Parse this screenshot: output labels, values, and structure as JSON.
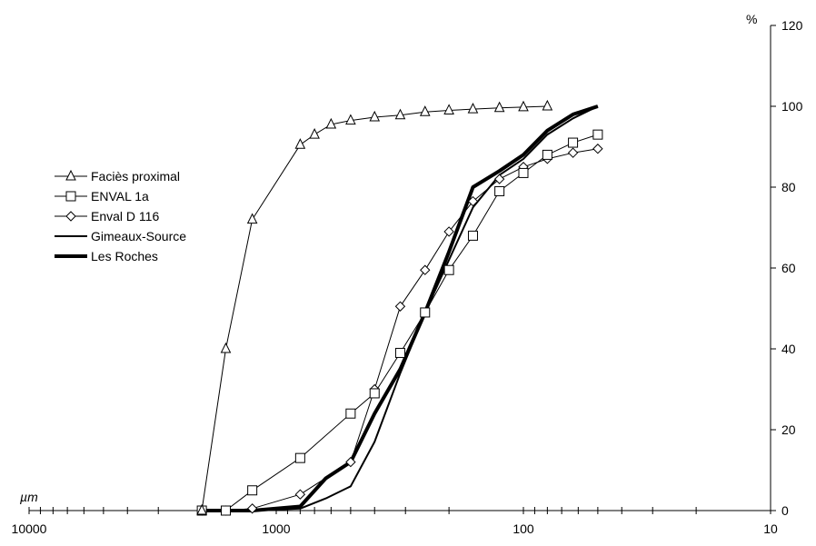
{
  "chart_data": {
    "type": "line",
    "x_scale": "log",
    "x_reversed": true,
    "xlim": [
      10000,
      10
    ],
    "ylim": [
      0,
      120
    ],
    "x_ticks": [
      10000,
      1000,
      100,
      10
    ],
    "x_tick_labels": [
      "10000",
      "1000",
      "100",
      "10"
    ],
    "y_ticks": [
      0,
      20,
      40,
      60,
      80,
      100,
      120
    ],
    "y_tick_labels": [
      "0",
      "20",
      "40",
      "60",
      "80",
      "100",
      "120"
    ],
    "x_unit": "µm",
    "y_unit": "%",
    "y_axis_side": "right",
    "legend_position": "left",
    "grid": false,
    "series": [
      {
        "name": "Faciès proximal",
        "marker": "triangle",
        "line_width": 1,
        "x": [
          2000,
          1600,
          1250,
          800,
          700,
          600,
          500,
          400,
          315,
          250,
          200,
          160,
          125,
          100,
          80
        ],
        "y": [
          0,
          40,
          72,
          90.5,
          93,
          95.5,
          96.5,
          97.3,
          97.8,
          98.6,
          99,
          99.3,
          99.6,
          99.8,
          100
        ]
      },
      {
        "name": "ENVAL 1a",
        "marker": "square",
        "line_width": 1,
        "x": [
          2000,
          1600,
          1250,
          800,
          500,
          400,
          315,
          250,
          200,
          160,
          125,
          100,
          80,
          63,
          50
        ],
        "y": [
          0,
          0,
          5,
          13,
          24,
          29,
          39,
          49,
          59.5,
          68,
          79,
          83.5,
          88,
          91,
          93
        ]
      },
      {
        "name": "Enval D 116",
        "marker": "diamond",
        "line_width": 1,
        "x": [
          2000,
          1600,
          1250,
          800,
          500,
          400,
          315,
          250,
          200,
          160,
          125,
          100,
          80,
          63,
          50
        ],
        "y": [
          0,
          0,
          0.5,
          4,
          12,
          30,
          50.5,
          59.5,
          69,
          76.5,
          82,
          85,
          87,
          88.5,
          89.5
        ]
      },
      {
        "name": "Gimeaux-Source",
        "marker": "none",
        "line_width": 2,
        "x": [
          2000,
          1250,
          800,
          630,
          500,
          400,
          315,
          250,
          200,
          160,
          125,
          100,
          80,
          63,
          50
        ],
        "y": [
          0,
          0,
          0.5,
          3,
          6,
          17,
          34,
          49,
          62,
          75,
          83,
          87,
          93,
          97,
          100
        ]
      },
      {
        "name": "Les Roches",
        "marker": "none",
        "line_width": 4,
        "x": [
          2000,
          1250,
          800,
          630,
          500,
          400,
          315,
          250,
          200,
          160,
          125,
          100,
          80,
          63,
          50
        ],
        "y": [
          0,
          0,
          1,
          8,
          12,
          24,
          35,
          49,
          64,
          80,
          84,
          88,
          94,
          98,
          100
        ]
      }
    ]
  }
}
